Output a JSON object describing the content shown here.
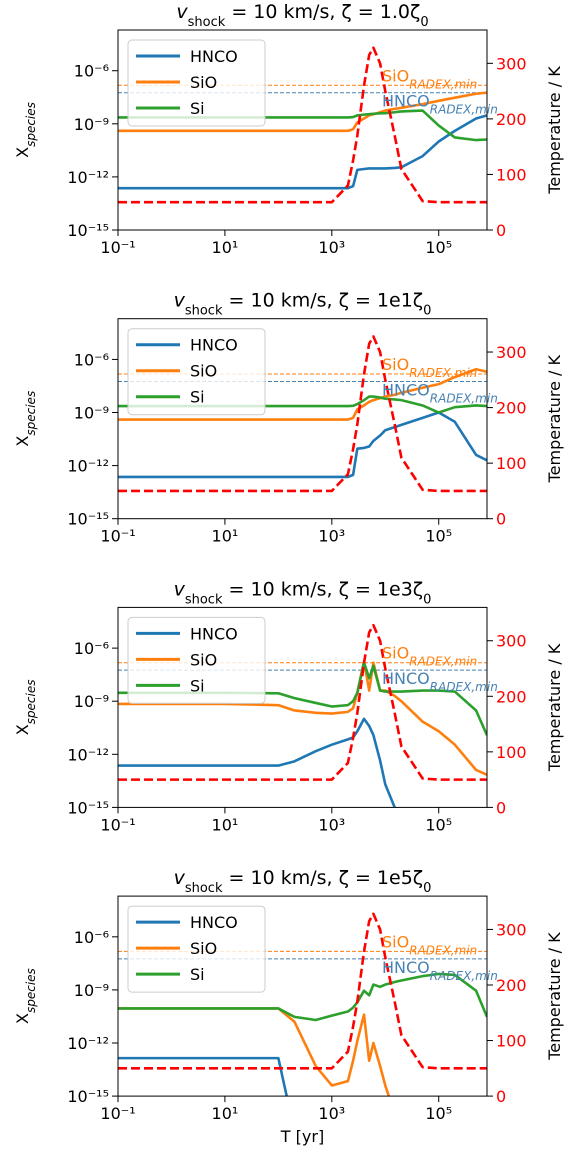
{
  "chart_data": [
    {
      "type": "line",
      "title": [
        "v",
        "shock",
        " = 10 km/s, ζ = 1.0ζ",
        "0"
      ],
      "ylabel": [
        "X",
        "species"
      ],
      "y2label": "Temperature / K",
      "xscale": "log",
      "yscale": "log",
      "xlim": [
        0.1,
        800000
      ],
      "ylim": [
        1e-15,
        0.0002
      ],
      "y2lim": [
        0,
        360
      ],
      "xticks": [
        {
          "value": 0.1,
          "label": "10⁻¹"
        },
        {
          "value": 10,
          "label": "10¹"
        },
        {
          "value": 1000,
          "label": "10³"
        },
        {
          "value": 100000,
          "label": "10⁵"
        }
      ],
      "yticks": [
        {
          "value": 1e-15,
          "label": "10⁻¹⁵"
        },
        {
          "value": 1e-12,
          "label": "10⁻¹²"
        },
        {
          "value": 1e-09,
          "label": "10⁻⁹"
        },
        {
          "value": 1e-06,
          "label": "10⁻⁶"
        }
      ],
      "y2ticks": [
        0,
        100,
        200,
        300
      ],
      "legend": "upper left",
      "x": [
        0.1,
        1,
        10,
        100,
        200,
        500,
        1000,
        2000,
        2500,
        3000,
        4000,
        5000,
        6000,
        8000,
        10000,
        15000,
        20000,
        50000,
        100000,
        200000,
        500000,
        800000
      ],
      "series": [
        {
          "name": "HNCO",
          "color": "#1f77b4",
          "values": [
            2.3e-13,
            2.3e-13,
            2.3e-13,
            2.3e-13,
            2.3e-13,
            2.3e-13,
            2.3e-13,
            2.3e-13,
            3e-13,
            2.5e-12,
            2.8e-12,
            3e-12,
            3e-12,
            3e-12,
            3e-12,
            3.2e-12,
            3.5e-12,
            1.5e-11,
            1e-10,
            4e-10,
            2e-09,
            3e-09
          ]
        },
        {
          "name": "SiO",
          "color": "#ff7f0e",
          "values": [
            4e-10,
            4e-10,
            4e-10,
            4e-10,
            4e-10,
            4e-10,
            4e-10,
            4e-10,
            5e-10,
            1.2e-09,
            2e-09,
            3e-09,
            3.5e-09,
            4.5e-09,
            5.6e-09,
            7e-09,
            8e-09,
            1.3e-08,
            2e-08,
            3e-08,
            5e-08,
            5.8e-08
          ]
        },
        {
          "name": "Si",
          "color": "#2ca02c",
          "values": [
            2.3e-09,
            2.3e-09,
            2.3e-09,
            2.3e-09,
            2.3e-09,
            2.3e-09,
            2.3e-09,
            2.3e-09,
            2.4e-09,
            3e-09,
            3.3e-09,
            3.5e-09,
            3.7e-09,
            3.9e-09,
            4e-09,
            4.5e-09,
            5e-09,
            5.6e-09,
            8e-10,
            1.7e-10,
            1.2e-10,
            1.3e-10
          ]
        },
        {
          "color": "#ff0000",
          "linestyle": "--",
          "axis": "y2",
          "values": [
            50,
            50,
            50,
            50,
            50,
            50,
            50,
            80,
            125,
            170,
            260,
            315,
            328,
            300,
            250,
            170,
            110,
            52,
            50,
            50,
            50,
            50
          ]
        }
      ],
      "annotations": [
        {
          "text": "SiO",
          "sub": "RADEX,min",
          "y": 1.5e-07,
          "color": "#ff7f0e"
        },
        {
          "text": "HNCO",
          "sub": "RADEX,min",
          "y": 5.7e-08,
          "color": "#4682b4"
        }
      ]
    },
    {
      "type": "line",
      "title": [
        "v",
        "shock",
        " = 10 km/s, ζ = 1e1ζ",
        "0"
      ],
      "ylabel": [
        "X",
        "species"
      ],
      "y2label": "Temperature / K",
      "xscale": "log",
      "yscale": "log",
      "xlim": [
        0.1,
        800000
      ],
      "ylim": [
        1e-15,
        0.0002
      ],
      "y2lim": [
        0,
        360
      ],
      "xticks": [
        {
          "value": 0.1,
          "label": "10⁻¹"
        },
        {
          "value": 10,
          "label": "10¹"
        },
        {
          "value": 1000,
          "label": "10³"
        },
        {
          "value": 100000,
          "label": "10⁵"
        }
      ],
      "yticks": [
        {
          "value": 1e-15,
          "label": "10⁻¹⁵"
        },
        {
          "value": 1e-12,
          "label": "10⁻¹²"
        },
        {
          "value": 1e-09,
          "label": "10⁻⁹"
        },
        {
          "value": 1e-06,
          "label": "10⁻⁶"
        }
      ],
      "y2ticks": [
        0,
        100,
        200,
        300
      ],
      "legend": "upper left",
      "x": [
        0.1,
        1,
        10,
        100,
        200,
        500,
        1000,
        2000,
        2500,
        3000,
        4000,
        5000,
        6000,
        8000,
        10000,
        15000,
        20000,
        50000,
        100000,
        200000,
        500000,
        800000
      ],
      "series": [
        {
          "name": "HNCO",
          "color": "#1f77b4",
          "values": [
            2.3e-13,
            2.3e-13,
            2.3e-13,
            2.3e-13,
            2.3e-13,
            2.3e-13,
            2.3e-13,
            2.3e-13,
            3e-13,
            9e-12,
            1e-11,
            1.2e-11,
            2.5e-11,
            5e-11,
            1e-10,
            1.5e-10,
            2e-10,
            5e-10,
            1e-09,
            3e-10,
            4e-12,
            2e-12
          ]
        },
        {
          "name": "SiO",
          "color": "#ff7f0e",
          "values": [
            4e-10,
            4e-10,
            4e-10,
            4e-10,
            4e-10,
            4e-10,
            4e-10,
            4e-10,
            5e-10,
            1.5e-09,
            2.5e-09,
            4e-09,
            5e-09,
            6.5e-09,
            8e-09,
            1e-08,
            1.3e-08,
            2.5e-08,
            4e-08,
            1e-07,
            2.8e-07,
            2e-07
          ]
        },
        {
          "name": "Si",
          "color": "#2ca02c",
          "values": [
            2.3e-09,
            2.3e-09,
            2.3e-09,
            2.3e-09,
            2.3e-09,
            2.3e-09,
            2.3e-09,
            2.3e-09,
            2.4e-09,
            3e-09,
            5e-09,
            8e-09,
            8e-09,
            7e-09,
            6e-09,
            5.5e-09,
            5e-09,
            2.5e-09,
            1e-09,
            2e-09,
            2.5e-09,
            2.3e-09
          ]
        },
        {
          "color": "#ff0000",
          "linestyle": "--",
          "axis": "y2",
          "values": [
            50,
            50,
            50,
            50,
            50,
            50,
            50,
            80,
            125,
            170,
            260,
            315,
            328,
            300,
            250,
            170,
            110,
            52,
            50,
            50,
            50,
            50
          ]
        }
      ],
      "annotations": [
        {
          "text": "SiO",
          "sub": "RADEX,min",
          "y": 1.5e-07,
          "color": "#ff7f0e"
        },
        {
          "text": "HNCO",
          "sub": "RADEX,min",
          "y": 5.7e-08,
          "color": "#4682b4"
        }
      ]
    },
    {
      "type": "line",
      "title": [
        "v",
        "shock",
        " = 10 km/s, ζ = 1e3ζ",
        "0"
      ],
      "ylabel": [
        "X",
        "species"
      ],
      "y2label": "Temperature / K",
      "xscale": "log",
      "yscale": "log",
      "xlim": [
        0.1,
        800000
      ],
      "ylim": [
        1e-15,
        0.0002
      ],
      "y2lim": [
        0,
        360
      ],
      "xticks": [
        {
          "value": 0.1,
          "label": "10⁻¹"
        },
        {
          "value": 10,
          "label": "10¹"
        },
        {
          "value": 1000,
          "label": "10³"
        },
        {
          "value": 100000,
          "label": "10⁵"
        }
      ],
      "yticks": [
        {
          "value": 1e-15,
          "label": "10⁻¹⁵"
        },
        {
          "value": 1e-12,
          "label": "10⁻¹²"
        },
        {
          "value": 1e-09,
          "label": "10⁻⁹"
        },
        {
          "value": 1e-06,
          "label": "10⁻⁶"
        }
      ],
      "y2ticks": [
        0,
        100,
        200,
        300
      ],
      "legend": "upper left",
      "x": [
        0.1,
        1,
        10,
        100,
        200,
        500,
        1000,
        2000,
        2500,
        3000,
        4000,
        5000,
        6000,
        8000,
        10000,
        15000,
        20000,
        50000,
        100000,
        200000,
        500000,
        800000
      ],
      "series": [
        {
          "name": "HNCO",
          "color": "#1f77b4",
          "values": [
            2.3e-13,
            2.3e-13,
            2.3e-13,
            2.3e-13,
            4e-13,
            1.5e-12,
            3.5e-12,
            7e-12,
            9e-12,
            2e-11,
            1e-10,
            4e-11,
            1.2e-11,
            4.5e-13,
            2e-14,
            1e-15,
            1e-17,
            1e-17,
            1e-17,
            1e-17,
            1e-17,
            1e-17
          ]
        },
        {
          "name": "SiO",
          "color": "#ff7f0e",
          "values": [
            7e-10,
            7e-10,
            7e-10,
            6e-10,
            3e-10,
            2.2e-10,
            2e-10,
            2.5e-10,
            4e-10,
            3e-09,
            1.8e-07,
            4e-09,
            1.5e-07,
            4e-09,
            4e-09,
            2e-09,
            1e-09,
            7e-11,
            2e-11,
            3.5e-12,
            1.3e-13,
            7e-14
          ]
        },
        {
          "name": "Si",
          "color": "#2ca02c",
          "values": [
            3e-09,
            3e-09,
            3e-09,
            2.8e-09,
            1.5e-09,
            8e-10,
            5e-10,
            6e-10,
            1e-09,
            3e-09,
            1.5e-07,
            2e-08,
            1e-07,
            4e-09,
            3.5e-09,
            3.5e-09,
            3.5e-09,
            4e-09,
            4e-09,
            3.5e-09,
            3e-10,
            1.2e-11
          ]
        },
        {
          "color": "#ff0000",
          "linestyle": "--",
          "axis": "y2",
          "values": [
            50,
            50,
            50,
            50,
            50,
            50,
            50,
            80,
            125,
            170,
            260,
            315,
            328,
            300,
            250,
            170,
            110,
            52,
            50,
            50,
            50,
            50
          ]
        }
      ],
      "annotations": [
        {
          "text": "SiO",
          "sub": "RADEX,min",
          "y": 1.5e-07,
          "color": "#ff7f0e"
        },
        {
          "text": "HNCO",
          "sub": "RADEX,min",
          "y": 5.7e-08,
          "color": "#4682b4"
        }
      ]
    },
    {
      "type": "line",
      "title": [
        "v",
        "shock",
        " = 10 km/s, ζ = 1e5ζ",
        "0"
      ],
      "ylabel": [
        "X",
        "species"
      ],
      "y2label": "Temperature / K",
      "xlabel": "T [yr]",
      "xscale": "log",
      "yscale": "log",
      "xlim": [
        0.1,
        800000
      ],
      "ylim": [
        1e-15,
        0.0002
      ],
      "y2lim": [
        0,
        360
      ],
      "xticks": [
        {
          "value": 0.1,
          "label": "10⁻¹"
        },
        {
          "value": 10,
          "label": "10¹"
        },
        {
          "value": 1000,
          "label": "10³"
        },
        {
          "value": 100000,
          "label": "10⁵"
        }
      ],
      "yticks": [
        {
          "value": 1e-15,
          "label": "10⁻¹⁵"
        },
        {
          "value": 1e-12,
          "label": "10⁻¹²"
        },
        {
          "value": 1e-09,
          "label": "10⁻⁹"
        },
        {
          "value": 1e-06,
          "label": "10⁻⁶"
        }
      ],
      "y2ticks": [
        0,
        100,
        200,
        300
      ],
      "legend": "upper left",
      "x": [
        0.1,
        1,
        10,
        100,
        200,
        500,
        1000,
        2000,
        2500,
        3000,
        4000,
        5000,
        6000,
        8000,
        10000,
        15000,
        20000,
        50000,
        100000,
        200000,
        500000,
        800000
      ],
      "series": [
        {
          "name": "HNCO",
          "color": "#1f77b4",
          "values": [
            1.4e-13,
            1.4e-13,
            1.4e-13,
            1.4e-13,
            1e-17,
            1e-17,
            1e-17,
            1e-17,
            1e-17,
            1e-17,
            1e-17,
            1e-17,
            1e-17,
            1e-17,
            1e-17,
            1e-17,
            1e-17,
            1e-17,
            1e-17,
            1e-17,
            1e-17,
            1e-17
          ]
        },
        {
          "name": "SiO",
          "color": "#ff7f0e",
          "values": [
            9e-11,
            9e-11,
            9e-11,
            9e-11,
            1.6e-11,
            5e-14,
            4e-15,
            7e-15,
            1e-13,
            1.3e-12,
            4e-11,
            1e-13,
            1e-12,
            5e-14,
            4e-15,
            1e-16,
            1e-17,
            1e-17,
            1e-17,
            1e-17,
            1e-17,
            1e-17
          ]
        },
        {
          "name": "Si",
          "color": "#2ca02c",
          "values": [
            9e-11,
            9e-11,
            9e-11,
            9e-11,
            3e-11,
            2e-11,
            3.5e-11,
            6e-11,
            1e-10,
            2e-10,
            9e-10,
            5e-10,
            2e-09,
            1.5e-09,
            2e-09,
            2.8e-09,
            3.4e-09,
            6e-09,
            8e-09,
            7e-09,
            9e-10,
            3e-11
          ]
        },
        {
          "color": "#ff0000",
          "linestyle": "--",
          "axis": "y2",
          "values": [
            50,
            50,
            50,
            50,
            50,
            50,
            50,
            80,
            125,
            170,
            260,
            315,
            328,
            300,
            250,
            170,
            110,
            52,
            50,
            50,
            50,
            50
          ]
        }
      ],
      "annotations": [
        {
          "text": "SiO",
          "sub": "RADEX,min",
          "y": 1.5e-07,
          "color": "#ff7f0e"
        },
        {
          "text": "HNCO",
          "sub": "RADEX,min",
          "y": 5.7e-08,
          "color": "#4682b4"
        }
      ]
    }
  ]
}
